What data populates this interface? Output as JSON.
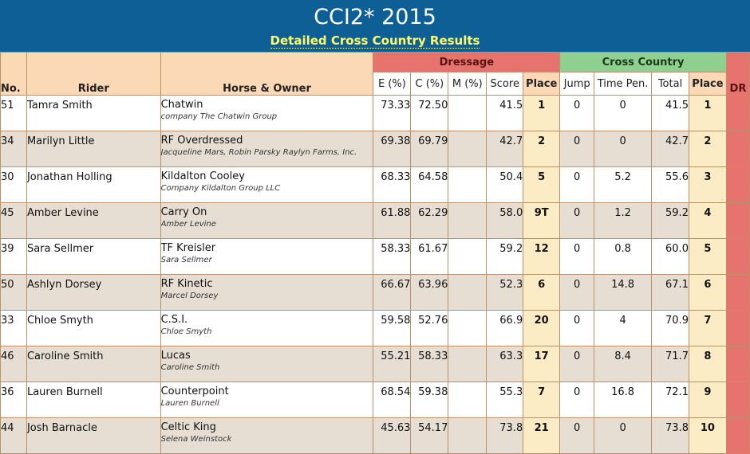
{
  "header": {
    "title": "CCI2* 2015",
    "subtitle": "Detailed Cross Country Results"
  },
  "columns": {
    "no": "No.",
    "rider": "Rider",
    "horse_owner": "Horse & Owner",
    "dressage_group": "Dressage",
    "cross_country_group": "Cross Country",
    "e_pct": "E (%)",
    "c_pct": "C (%)",
    "m_pct": "M (%)",
    "score": "Score",
    "d_place": "Place",
    "jump": "Jump",
    "time_pen": "Time Pen.",
    "total": "Total",
    "xc_place": "Place",
    "dr": "DR"
  },
  "rows": [
    {
      "no": "51",
      "rider": "Tamra Smith",
      "horse": "Chatwin",
      "owner": "company The Chatwin Group",
      "e": "73.33",
      "c": "72.50",
      "m": "",
      "score": "41.5",
      "dplace": "1",
      "jump": "0",
      "timepen": "0",
      "total": "41.5",
      "xplace": "1"
    },
    {
      "no": "34",
      "rider": "Marilyn Little",
      "horse": "RF Overdressed",
      "owner": "Jacqueline Mars, Robin Parsky Raylyn Farms, Inc.",
      "e": "69.38",
      "c": "69.79",
      "m": "",
      "score": "42.7",
      "dplace": "2",
      "jump": "0",
      "timepen": "0",
      "total": "42.7",
      "xplace": "2"
    },
    {
      "no": "30",
      "rider": "Jonathan Holling",
      "horse": "Kildalton Cooley",
      "owner": "Company Kildalton Group LLC",
      "e": "68.33",
      "c": "64.58",
      "m": "",
      "score": "50.4",
      "dplace": "5",
      "jump": "0",
      "timepen": "5.2",
      "total": "55.6",
      "xplace": "3"
    },
    {
      "no": "45",
      "rider": "Amber Levine",
      "horse": "Carry On",
      "owner": "Amber Levine",
      "e": "61.88",
      "c": "62.29",
      "m": "",
      "score": "58.0",
      "dplace": "9T",
      "jump": "0",
      "timepen": "1.2",
      "total": "59.2",
      "xplace": "4"
    },
    {
      "no": "39",
      "rider": "Sara Sellmer",
      "horse": "TF Kreisler",
      "owner": "Sara Sellmer",
      "e": "58.33",
      "c": "61.67",
      "m": "",
      "score": "59.2",
      "dplace": "12",
      "jump": "0",
      "timepen": "0.8",
      "total": "60.0",
      "xplace": "5"
    },
    {
      "no": "50",
      "rider": "Ashlyn Dorsey",
      "horse": "RF Kinetic",
      "owner": "Marcel Dorsey",
      "e": "66.67",
      "c": "63.96",
      "m": "",
      "score": "52.3",
      "dplace": "6",
      "jump": "0",
      "timepen": "14.8",
      "total": "67.1",
      "xplace": "6"
    },
    {
      "no": "33",
      "rider": "Chloe Smyth",
      "horse": "C.S.I.",
      "owner": "Chloe Smyth",
      "e": "59.58",
      "c": "52.76",
      "m": "",
      "score": "66.9",
      "dplace": "20",
      "jump": "0",
      "timepen": "4",
      "total": "70.9",
      "xplace": "7"
    },
    {
      "no": "46",
      "rider": "Caroline Smith",
      "horse": "Lucas",
      "owner": "Caroline Smith",
      "e": "55.21",
      "c": "58.33",
      "m": "",
      "score": "63.3",
      "dplace": "17",
      "jump": "0",
      "timepen": "8.4",
      "total": "71.7",
      "xplace": "8"
    },
    {
      "no": "36",
      "rider": "Lauren Burnell",
      "horse": "Counterpoint",
      "owner": "Lauren Burnell",
      "e": "68.54",
      "c": "59.38",
      "m": "",
      "score": "55.3",
      "dplace": "7",
      "jump": "0",
      "timepen": "16.8",
      "total": "72.1",
      "xplace": "9"
    },
    {
      "no": "44",
      "rider": "Josh Barnacle",
      "horse": "Celtic King",
      "owner": "Selena Weinstock",
      "e": "45.63",
      "c": "54.17",
      "m": "",
      "score": "73.8",
      "dplace": "21",
      "jump": "0",
      "timepen": "0",
      "total": "73.8",
      "xplace": "10"
    }
  ],
  "colors": {
    "banner": "#0e5f96",
    "subtitle": "#ffff66",
    "dressage": "#e6736e",
    "cross_country": "#8fcf8f",
    "header_peach": "#fcd9b6",
    "place_cell": "#fcecc6",
    "row_alt": "#e6ddd3"
  }
}
